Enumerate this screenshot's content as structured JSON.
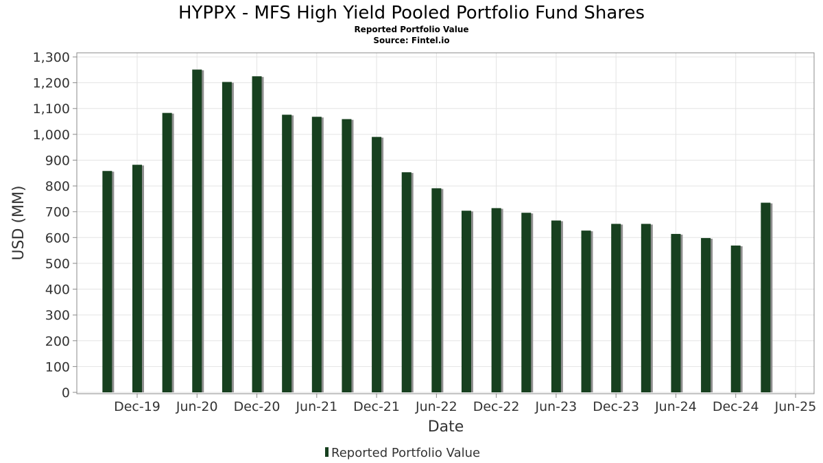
{
  "chart_data": {
    "type": "bar",
    "title": "HYPPX - MFS High Yield Pooled Portfolio Fund Shares",
    "subtitle_1": "Reported Portfolio Value",
    "subtitle_2": "Source: Fintel.io",
    "xlabel": "Date",
    "ylabel": "USD (MM)",
    "ylim": [
      0,
      1300
    ],
    "yticks": [
      0,
      100,
      200,
      300,
      400,
      500,
      600,
      700,
      800,
      900,
      1000,
      1100,
      1200,
      1300
    ],
    "ytick_labels": [
      "0",
      "100",
      "200",
      "300",
      "400",
      "500",
      "600",
      "700",
      "800",
      "900",
      "1,000",
      "1,100",
      "1,200",
      "1,300"
    ],
    "xtick_labels": [
      "Dec-19",
      "Jun-20",
      "Dec-20",
      "Jun-21",
      "Dec-21",
      "Jun-22",
      "Dec-22",
      "Jun-23",
      "Dec-23",
      "Jun-24",
      "Dec-24",
      "Jun-25"
    ],
    "x": [
      "2019-09",
      "2019-12",
      "2020-03",
      "2020-06",
      "2020-09",
      "2020-12",
      "2021-03",
      "2021-06",
      "2021-09",
      "2021-12",
      "2022-03",
      "2022-06",
      "2022-09",
      "2022-12",
      "2023-03",
      "2023-06",
      "2023-09",
      "2023-12",
      "2024-03",
      "2024-06",
      "2024-09",
      "2024-12",
      "2025-03"
    ],
    "series": [
      {
        "name": "Reported Portfolio Value",
        "color": "#17401f",
        "values": [
          858,
          882,
          1083,
          1251,
          1203,
          1225,
          1076,
          1068,
          1059,
          990,
          853,
          791,
          704,
          714,
          696,
          666,
          627,
          653,
          653,
          614,
          598,
          569,
          735
        ]
      }
    ],
    "grid": true,
    "legend": "bottom-center"
  }
}
